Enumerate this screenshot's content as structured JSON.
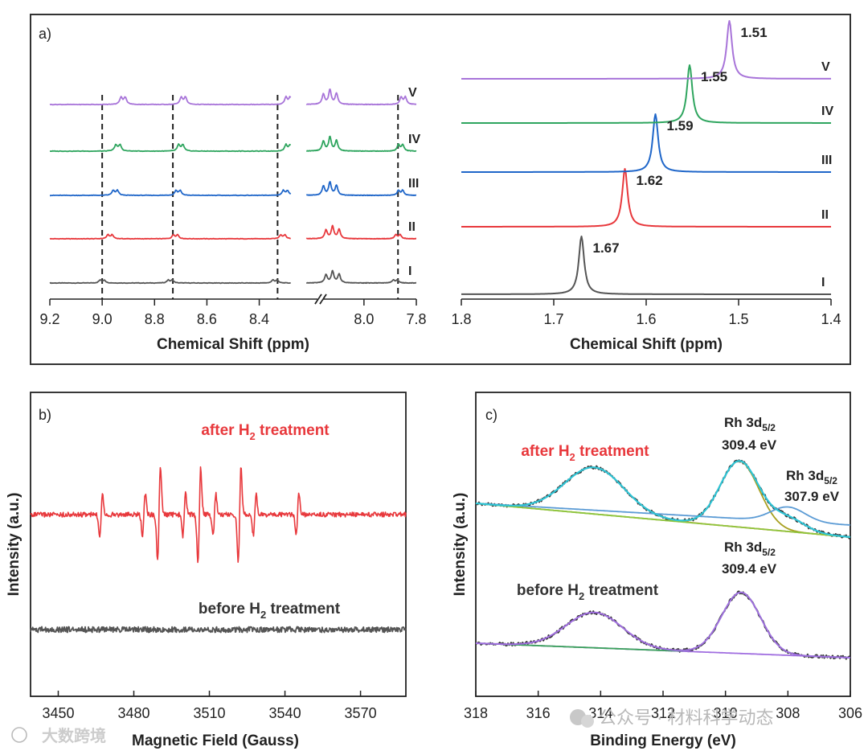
{
  "chart_data": [
    {
      "id": "a-left",
      "type": "line",
      "panel_label": "a)",
      "title": "",
      "xlabel": "Chemical Shift (ppm)",
      "ylabel": "",
      "xlim": [
        9.2,
        7.8
      ],
      "x_break": [
        8.28,
        8.22
      ],
      "xticks": [
        9.2,
        9.0,
        8.8,
        8.6,
        8.4,
        8.0,
        7.8
      ],
      "xtick_labels": [
        "9.2",
        "9.0",
        "8.8",
        "8.6",
        "8.4",
        "8.0",
        "7.8"
      ],
      "reference_lines_ppm": [
        9.0,
        8.73,
        8.33,
        7.87
      ],
      "series": [
        {
          "name": "I",
          "color": "#555555",
          "peaks_ppm": [
            9.0,
            8.74,
            8.34,
            7.88
          ],
          "aromatic_peak_ppm": 8.12,
          "relative_height": 0.6
        },
        {
          "name": "II",
          "color": "#e8383c",
          "peaks_ppm": [
            8.97,
            8.72,
            8.31,
            7.87
          ],
          "aromatic_peak_ppm": 8.12,
          "relative_height": 0.8
        },
        {
          "name": "III",
          "color": "#1f66c9",
          "peaks_ppm": [
            8.95,
            8.71,
            8.3,
            7.86
          ],
          "aromatic_peak_ppm": 8.13,
          "relative_height": 1.0
        },
        {
          "name": "IV",
          "color": "#2ea55e",
          "peaks_ppm": [
            8.94,
            8.7,
            8.29,
            7.86
          ],
          "aromatic_peak_ppm": 8.13,
          "relative_height": 1.3
        },
        {
          "name": "V",
          "color": "#a874d9",
          "peaks_ppm": [
            8.92,
            8.69,
            8.29,
            7.85
          ],
          "aromatic_peak_ppm": 8.13,
          "relative_height": 1.5
        }
      ]
    },
    {
      "id": "a-right",
      "type": "line",
      "title": "",
      "xlabel": "Chemical Shift (ppm)",
      "ylabel": "",
      "xlim": [
        1.8,
        1.4
      ],
      "xticks": [
        1.8,
        1.7,
        1.6,
        1.5,
        1.4
      ],
      "xtick_labels": [
        "1.8",
        "1.7",
        "1.6",
        "1.5",
        "1.4"
      ],
      "series": [
        {
          "name": "I",
          "color": "#555555",
          "peak_ppm": 1.67,
          "label": "1.67"
        },
        {
          "name": "II",
          "color": "#e8383c",
          "peak_ppm": 1.623,
          "label": "1.62"
        },
        {
          "name": "III",
          "color": "#1f66c9",
          "peak_ppm": 1.59,
          "label": "1.59"
        },
        {
          "name": "IV",
          "color": "#2ea55e",
          "peak_ppm": 1.553,
          "label": "1.55"
        },
        {
          "name": "V",
          "color": "#a874d9",
          "peak_ppm": 1.51,
          "label": "1.51"
        }
      ]
    },
    {
      "id": "b",
      "type": "line",
      "panel_label": "b)",
      "title": "",
      "xlabel": "Magnetic Field (Gauss)",
      "ylabel": "Intensity (a.u.)",
      "xlim": [
        3439,
        3588
      ],
      "xticks": [
        3450,
        3480,
        3510,
        3540,
        3570
      ],
      "xtick_labels": [
        "3450",
        "3480",
        "3510",
        "3540",
        "3570"
      ],
      "series": [
        {
          "name": "after H2 treatment",
          "color": "#e8383c",
          "lines_gauss": [
            3467,
            3484,
            3490,
            3500,
            3506,
            3512,
            3522,
            3528,
            3545
          ],
          "amplitudes": [
            0.45,
            0.45,
            1.0,
            0.45,
            1.0,
            0.45,
            1.0,
            0.45,
            0.45
          ]
        },
        {
          "name": "before H2 treatment",
          "color": "#555555",
          "lines_gauss": [],
          "amplitudes": []
        }
      ],
      "annotations": [
        {
          "prefix": "after H",
          "sub": "2",
          "suffix": " treatment",
          "color": "#e8383c"
        },
        {
          "prefix": "before H",
          "sub": "2",
          "suffix": " treatment",
          "color": "#333333"
        }
      ]
    },
    {
      "id": "c",
      "type": "line",
      "panel_label": "c)",
      "title": "",
      "xlabel": "Binding Energy (eV)",
      "ylabel": "Intensity (a.u.)",
      "xlim": [
        318,
        306
      ],
      "xticks": [
        318,
        316,
        314,
        312,
        310,
        308,
        306
      ],
      "xtick_labels": [
        "318",
        "316",
        "314",
        "312",
        "310",
        "308",
        "306"
      ],
      "series": [
        {
          "name": "after: raw spectrum",
          "color": "#333333"
        },
        {
          "name": "after: envelope",
          "color": "#2ec4d6"
        },
        {
          "name": "after: 3d3/2 component",
          "color": "#ee7b22",
          "center_ev": 314.2
        },
        {
          "name": "after: 3d5/2 component 309.4 eV",
          "color": "#a8a020",
          "center_ev": 309.55
        },
        {
          "name": "after: 3d component 307.9 eV",
          "color": "#5b9bd5",
          "center_ev": 308.0
        },
        {
          "name": "after: background",
          "color": "#8cc63e"
        },
        {
          "name": "before: raw spectrum",
          "color": "#333333"
        },
        {
          "name": "before: envelope",
          "color": "#a06ee0"
        },
        {
          "name": "before: components",
          "color": "#3aa35a",
          "center_ev": 309.5
        },
        {
          "name": "before: background",
          "color": "#3aa35a"
        }
      ],
      "annotations": [
        {
          "prefix": "after H",
          "sub": "2",
          "suffix": " treatment",
          "color": "#e8383c"
        },
        {
          "prefix": "before H",
          "sub": "2",
          "suffix": " treatment",
          "color": "#333333"
        },
        {
          "line1_prefix": "Rh 3d",
          "line1_sub": "5/2",
          "line2": "309.4 eV"
        },
        {
          "line1_prefix": "Rh 3d",
          "line1_sub": "5/2",
          "line2": "307.9 eV"
        },
        {
          "line1_prefix": "Rh 3d",
          "line1_sub": "5/2",
          "line2": "309.4 eV"
        }
      ]
    }
  ],
  "watermarks": {
    "left": "大数跨境",
    "right": "公众号 · 材料科学动态"
  }
}
